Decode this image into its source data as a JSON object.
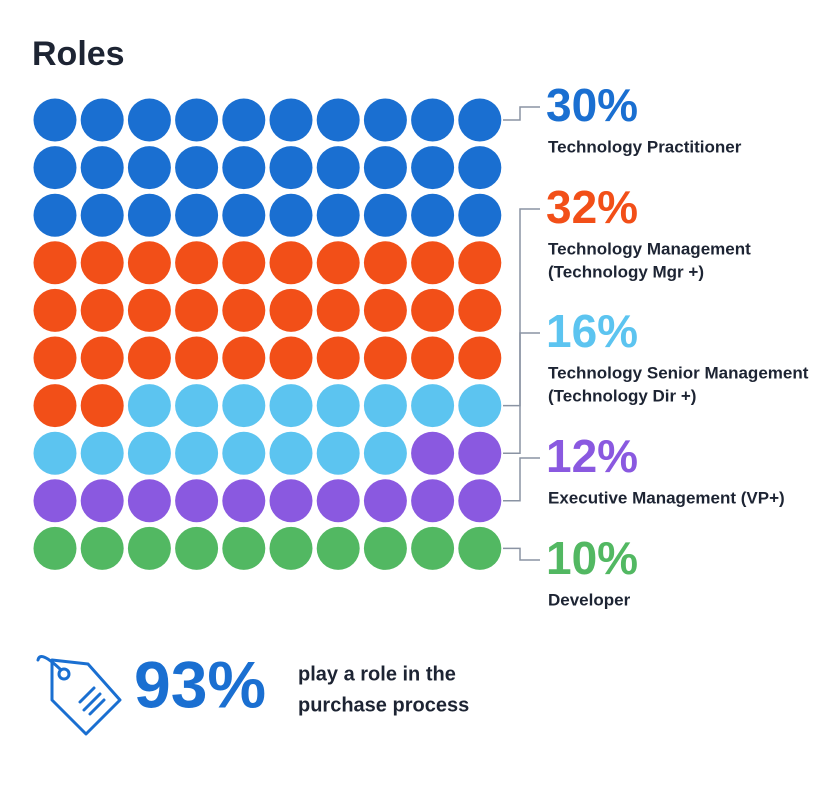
{
  "chart_data": {
    "type": "waffle",
    "title": "Roles",
    "categories": [
      [
        "Technology Practitioner"
      ],
      [
        "Technology Management",
        "(Technology Mgr +)"
      ],
      [
        "Technology Senior Management",
        "(Technology Dir +)"
      ],
      [
        "Executive Management (VP+)"
      ],
      [
        "Developer"
      ]
    ],
    "values": [
      30,
      32,
      16,
      12,
      10
    ],
    "value_labels": [
      "30%",
      "32%",
      "16%",
      "12%",
      "10%"
    ],
    "colors": [
      "#1a6fd1",
      "#f24f18",
      "#5cc4f0",
      "#8a59e0",
      "#52b862"
    ]
  },
  "callout": {
    "stat": "93%",
    "text": [
      "play a role in the",
      "purchase process"
    ]
  }
}
